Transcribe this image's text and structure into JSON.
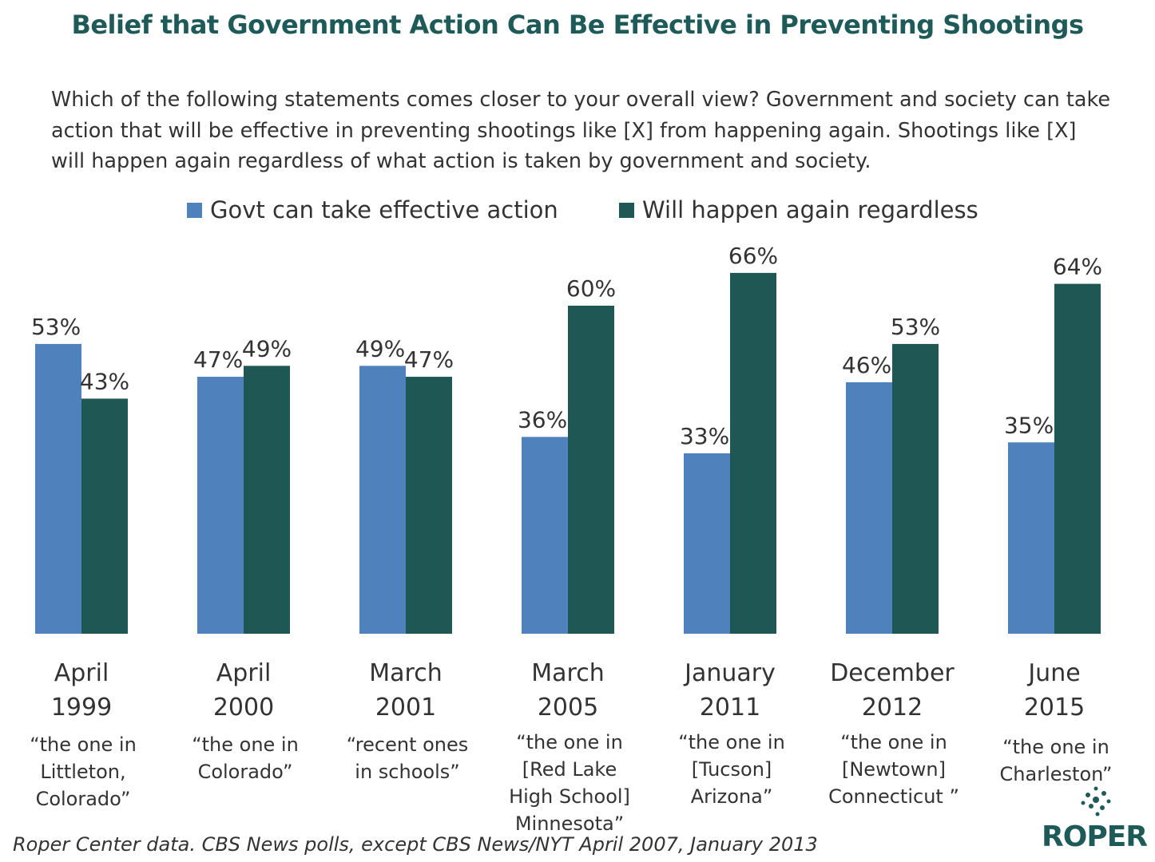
{
  "title": "Belief that Government Action Can Be Effective in Preventing Shootings",
  "question": "Which of the following statements comes closer to your overall view? Government and society can take action that will be effective in preventing shootings like [X] from happening again. Shootings like [X] will happen again regardless of what action is taken by government and society.",
  "footer": "Roper Center data. CBS News polls, except CBS News/NYT April 2007, January 2013",
  "logo_text": "ROPER",
  "colors": {
    "govt": "#4f81bd",
    "regardless": "#1f5755",
    "title": "#1d5a58"
  },
  "chart_data": {
    "type": "bar",
    "categories": [
      "April 1999",
      "April 2000",
      "March 2001",
      "March 2005",
      "January 2011",
      "December 2012",
      "June 2015"
    ],
    "category_lines": [
      [
        "April",
        "1999"
      ],
      [
        "April",
        "2000"
      ],
      [
        "March",
        "2001"
      ],
      [
        "March",
        "2005"
      ],
      [
        "January",
        "2011"
      ],
      [
        "December",
        "2012"
      ],
      [
        "June",
        "2015"
      ]
    ],
    "category_notes": [
      [
        "“the one in",
        "Littleton,",
        "Colorado”"
      ],
      [
        "“the one in",
        "Colorado”"
      ],
      [
        "“recent ones",
        "in schools”"
      ],
      [
        "“the one in",
        "[Red Lake",
        "High School]",
        "Minnesota”"
      ],
      [
        "“the one in",
        "[Tucson]",
        "Arizona”"
      ],
      [
        "“the one in",
        "[Newtown]",
        "Connecticut ”"
      ],
      [
        "“the one in",
        "Charleston”"
      ]
    ],
    "series": [
      {
        "name": "Govt can take effective action",
        "values": [
          53,
          47,
          49,
          36,
          33,
          46,
          35
        ]
      },
      {
        "name": "Will happen again regardless",
        "values": [
          43,
          49,
          47,
          60,
          66,
          53,
          64
        ]
      }
    ],
    "value_suffix": "%",
    "ylim": [
      0,
      100
    ],
    "grid": false,
    "legend": "top"
  }
}
